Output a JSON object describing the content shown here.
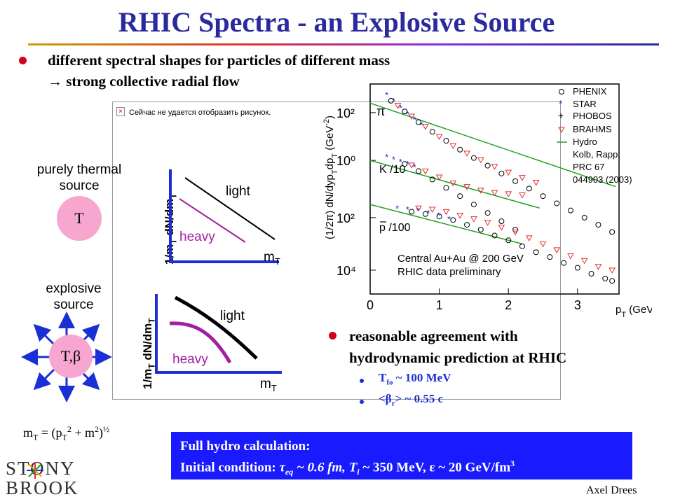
{
  "title": "RHIC Spectra - an Explosive Source",
  "bullets": {
    "main": "different spectral shapes for particles of different mass",
    "sub_arrow": "→",
    "sub": "strong collective radial flow"
  },
  "broken_image": {
    "message": "Сейчас не удается отобразить рисунок."
  },
  "thermal": {
    "label_line1": "purely thermal",
    "label_line2": "source",
    "symbol": "T"
  },
  "explosive": {
    "label_line1": "explosive",
    "label_line2": "source",
    "symbol": "T,β"
  },
  "sketch_top": {
    "ylabel_main": "1/m",
    "ylabel_sub": "T",
    "ylabel_rest": " dN/dm",
    "ylabel_sub2": "T",
    "xlabel_main": "m",
    "xlabel_sub": "T",
    "light": "light",
    "heavy": "heavy"
  },
  "sketch_bottom": {
    "ylabel_main": "1/m",
    "ylabel_sub": "T",
    "ylabel_rest": " dN/dm",
    "ylabel_sub2": "T",
    "xlabel_main": "m",
    "xlabel_sub": "T",
    "light": "light",
    "heavy": "heavy"
  },
  "mt_formula": {
    "m": "m",
    "t": "T",
    "eq": " = (p",
    "t2": "T",
    "sup2": "2",
    "plus": " + m",
    "sup2b": "2",
    "close": ")",
    "half": "½"
  },
  "chart_data": {
    "type": "scatter",
    "log_y": true,
    "xlabel": "p",
    "xlabel_sub": "T",
    "xlabel_unit": " (GeV/c)",
    "ylabel": "(1/2π) dN/dyp_T dp_T (GeV^-2)",
    "xlim": [
      0,
      3.6
    ],
    "x_ticks": [
      "0",
      "1",
      "2",
      "3"
    ],
    "y_ticks": [
      "10²",
      "10⁰",
      "10²",
      "10⁴"
    ],
    "species_labels": [
      "π",
      "K /10",
      "p /100"
    ],
    "colors": {
      "phenix": "#000000",
      "star": "#1a2fd6",
      "phobos": "#000000",
      "brahms": "#e03030",
      "hydro": "#22a022"
    },
    "legend": [
      "PHENIX",
      "STAR",
      "PHOBOS",
      "BRAHMS",
      "Hydro",
      "Kolb, Rapp,",
      "PRC 67",
      "044903 (2003)"
    ],
    "annotation_line1": "Central Au+Au @ 200 GeV",
    "annotation_line2": "RHIC data preliminary",
    "series": [
      {
        "name": "pi-PHENIX",
        "x": [
          0.3,
          0.5,
          0.7,
          0.9,
          1.1,
          1.3,
          1.5,
          1.7,
          1.9,
          2.1,
          2.3,
          2.5,
          2.7,
          2.9,
          3.1,
          3.3,
          3.5
        ],
        "y": [
          2.5,
          2.05,
          1.6,
          1.2,
          0.82,
          0.45,
          0.1,
          -0.22,
          -0.55,
          -0.87,
          -1.18,
          -1.5,
          -1.8,
          -2.1,
          -2.4,
          -2.7,
          -3.0
        ]
      },
      {
        "name": "pi-BRAHMS",
        "x": [
          0.4,
          0.6,
          0.8,
          1.0,
          1.2,
          1.4,
          1.6,
          1.8,
          2.0,
          2.2,
          2.4
        ],
        "y": [
          2.3,
          1.85,
          1.42,
          1.0,
          0.62,
          0.3,
          0.02,
          -0.25,
          -0.5,
          -0.72,
          -0.92
        ]
      },
      {
        "name": "pi-STAR",
        "x": [
          0.25,
          0.35,
          0.45,
          0.55,
          0.65,
          0.75
        ],
        "y": [
          2.75,
          2.5,
          2.2,
          1.95,
          1.72,
          1.5
        ]
      },
      {
        "name": "K-PHENIX",
        "x": [
          0.5,
          0.7,
          0.9,
          1.1,
          1.3,
          1.5,
          1.7,
          1.9,
          2.1
        ],
        "y": [
          -0.15,
          -0.45,
          -0.8,
          -1.15,
          -1.5,
          -1.85,
          -2.2,
          -2.55,
          -2.9
        ]
      },
      {
        "name": "K-BRAHMS",
        "x": [
          0.6,
          0.8,
          1.0,
          1.2,
          1.4,
          1.6,
          1.8,
          2.0,
          2.2
        ],
        "y": [
          -0.2,
          -0.45,
          -0.7,
          -0.95,
          -1.1,
          -1.25,
          -1.35,
          -1.4,
          -1.45
        ]
      },
      {
        "name": "K-STAR",
        "x": [
          0.25,
          0.35,
          0.45,
          0.55,
          0.65
        ],
        "y": [
          0.15,
          0.05,
          -0.05,
          -0.15,
          -0.28
        ]
      },
      {
        "name": "p-PHENIX",
        "x": [
          0.6,
          0.8,
          1.0,
          1.2,
          1.4,
          1.6,
          1.8,
          2.0,
          2.2,
          2.4,
          2.6,
          2.8,
          3.0,
          3.2,
          3.4,
          3.5
        ],
        "y": [
          -2.15,
          -2.25,
          -2.35,
          -2.5,
          -2.7,
          -2.9,
          -3.15,
          -3.35,
          -3.6,
          -3.85,
          -4.05,
          -4.3,
          -4.5,
          -4.75,
          -4.95,
          -5.05
        ]
      },
      {
        "name": "p-BRAHMS",
        "x": [
          0.7,
          0.9,
          1.1,
          1.3,
          1.5,
          1.7,
          1.9,
          2.1,
          2.3,
          2.5,
          2.7,
          2.9,
          3.1,
          3.3,
          3.5
        ],
        "y": [
          -2.0,
          -2.05,
          -2.15,
          -2.3,
          -2.45,
          -2.6,
          -2.8,
          -3.0,
          -3.25,
          -3.5,
          -3.75,
          -4.0,
          -4.2,
          -4.45,
          -4.6
        ]
      },
      {
        "name": "p-STAR",
        "x": [
          0.4,
          0.55,
          0.7,
          0.85,
          1.0,
          1.15
        ],
        "y": [
          -2.0,
          -2.05,
          -2.1,
          -2.2,
          -2.3,
          -2.45
        ]
      }
    ],
    "hydro_lines": [
      {
        "x": [
          0.0,
          3.55
        ],
        "y": [
          2.4,
          -1.1
        ]
      },
      {
        "x": [
          0.0,
          2.45
        ],
        "y": [
          0.0,
          -2.0
        ]
      },
      {
        "x": [
          0.0,
          2.2
        ],
        "y": [
          -1.85,
          -3.5
        ]
      }
    ]
  },
  "agreement": {
    "line1": "reasonable agreement with",
    "line2": "hydrodynamic prediction at RHIC",
    "t_main": "T",
    "t_sub": "fo",
    "t_rest": " ~ 100 MeV",
    "beta_open": "<β",
    "beta_sub": "r",
    "beta_rest": "> ~ 0.55 c"
  },
  "hydro_box": {
    "line1": "Full hydro calculation:",
    "line2_a": "Initial condition:  ",
    "tau": "τ",
    "eq": "eq",
    "tau_rest": " ~ 0.6 fm,   ",
    "ti": "T",
    "i": "i",
    "ti_rest": " ~ 350 MeV,   ",
    "eps": "ε",
    "eps_rest": " ~ 20 GeV/fm",
    "cube": "3"
  },
  "logo": {
    "line1": "STONY",
    "line2": "BROOK"
  },
  "footer": "Axel Drees"
}
